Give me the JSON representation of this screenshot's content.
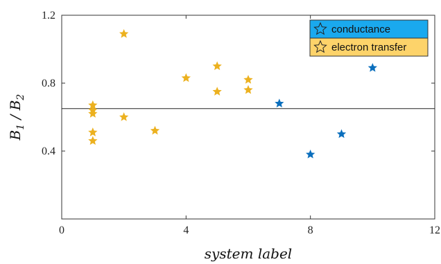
{
  "chart_data": {
    "type": "scatter",
    "xlabel": "system label",
    "ylabel": {
      "base": "B",
      "num_sub": "1",
      "sep": " / ",
      "den_sub": "2"
    },
    "xlim": [
      0,
      12
    ],
    "ylim": [
      0,
      1.2
    ],
    "x_ticks": [
      0,
      4,
      8,
      12
    ],
    "y_ticks": [
      0.4,
      0.8,
      1.2
    ],
    "x_tick_labels": [
      "0",
      "4",
      "8",
      "12"
    ],
    "y_tick_labels": [
      "0.4",
      "0.8",
      "1.2"
    ],
    "grid": false,
    "legend_position": "top-right",
    "reference_line": {
      "y": 0.65,
      "color": "#222222"
    },
    "series": [
      {
        "name": "conductance",
        "color": "#0b6fbd",
        "legend_bg": "#1aa9ee",
        "marker": "star",
        "points": [
          {
            "x": 7,
            "y": 0.68
          },
          {
            "x": 8,
            "y": 0.38
          },
          {
            "x": 9,
            "y": 0.5
          },
          {
            "x": 10,
            "y": 0.89
          }
        ]
      },
      {
        "name": "electron transfer",
        "color": "#ecb11f",
        "legend_bg": "#fdd36a",
        "marker": "star",
        "points": [
          {
            "x": 1,
            "y": 0.67
          },
          {
            "x": 1,
            "y": 0.64
          },
          {
            "x": 1,
            "y": 0.62
          },
          {
            "x": 1,
            "y": 0.51
          },
          {
            "x": 1,
            "y": 0.46
          },
          {
            "x": 2,
            "y": 1.09
          },
          {
            "x": 2,
            "y": 0.6
          },
          {
            "x": 3,
            "y": 0.52
          },
          {
            "x": 4,
            "y": 0.83
          },
          {
            "x": 5,
            "y": 0.9
          },
          {
            "x": 5,
            "y": 0.75
          },
          {
            "x": 6,
            "y": 0.82
          },
          {
            "x": 6,
            "y": 0.76
          }
        ]
      }
    ]
  }
}
